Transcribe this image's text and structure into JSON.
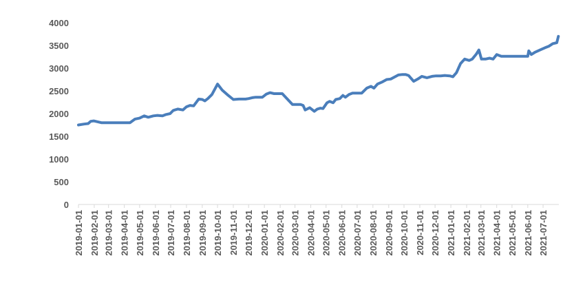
{
  "chart_data": {
    "type": "line",
    "title": "",
    "xlabel": "",
    "ylabel": "",
    "ylim": [
      0,
      4000
    ],
    "yticks": [
      0,
      500,
      1000,
      1500,
      2000,
      2500,
      3000,
      3500,
      4000
    ],
    "xticks": [
      "2019-01-01",
      "2019-02-01",
      "2019-03-01",
      "2019-04-01",
      "2019-05-01",
      "2019-06-01",
      "2019-07-01",
      "2019-08-01",
      "2019-09-01",
      "2019-10-01",
      "2019-11-01",
      "2019-12-01",
      "2020-01-01",
      "2020-02-01",
      "2020-03-01",
      "2020-04-01",
      "2020-05-01",
      "2020-06-01",
      "2020-07-01",
      "2020-08-01",
      "2020-09-01",
      "2020-10-01",
      "2020-11-01",
      "2020-12-01",
      "2021-01-01",
      "2021-02-01",
      "2021-03-01",
      "2021-04-01",
      "2021-05-01",
      "2021-06-01",
      "2021-07-01"
    ],
    "xlim": [
      "2019-01-01",
      "2021-08-01"
    ],
    "grid": false,
    "legend": "none",
    "colors": {
      "series": "#4a7ebb",
      "axis": "#d9d9d9",
      "text": "#595959"
    },
    "series": [
      {
        "x": [
          "2019-01-01",
          "2019-01-12",
          "2019-01-20",
          "2019-01-25",
          "2019-01-31",
          "2019-02-15",
          "2019-03-01",
          "2019-03-20",
          "2019-04-01",
          "2019-04-12",
          "2019-04-22",
          "2019-05-01",
          "2019-05-10",
          "2019-05-18",
          "2019-05-28",
          "2019-06-05",
          "2019-06-15",
          "2019-06-22",
          "2019-06-30",
          "2019-07-06",
          "2019-07-15",
          "2019-07-25",
          "2019-08-01",
          "2019-08-08",
          "2019-08-15",
          "2019-08-25",
          "2019-09-01",
          "2019-09-06",
          "2019-09-12",
          "2019-09-20",
          "2019-10-01",
          "2019-10-10",
          "2019-10-20",
          "2019-11-01",
          "2019-11-12",
          "2019-11-25",
          "2019-12-01",
          "2019-12-08",
          "2019-12-15",
          "2019-12-22",
          "2019-12-28",
          "2020-01-05",
          "2020-01-12",
          "2020-01-20",
          "2020-01-31",
          "2020-02-05",
          "2020-02-25",
          "2020-03-05",
          "2020-03-12",
          "2020-03-17",
          "2020-03-21",
          "2020-03-30",
          "2020-04-08",
          "2020-04-14",
          "2020-04-20",
          "2020-04-25",
          "2020-05-03",
          "2020-05-08",
          "2020-05-15",
          "2020-05-20",
          "2020-05-28",
          "2020-06-03",
          "2020-06-08",
          "2020-06-15",
          "2020-06-22",
          "2020-07-01",
          "2020-07-10",
          "2020-07-20",
          "2020-07-28",
          "2020-08-03",
          "2020-08-10",
          "2020-08-20",
          "2020-08-28",
          "2020-09-05",
          "2020-09-15",
          "2020-09-20",
          "2020-09-28",
          "2020-10-04",
          "2020-10-10",
          "2020-10-20",
          "2020-10-28",
          "2020-11-05",
          "2020-11-15",
          "2020-11-25",
          "2020-12-03",
          "2020-12-12",
          "2020-12-20",
          "2020-12-30",
          "2021-01-05",
          "2021-01-12",
          "2021-01-20",
          "2021-01-28",
          "2021-02-06",
          "2021-02-12",
          "2021-02-20",
          "2021-02-25",
          "2021-03-02",
          "2021-03-10",
          "2021-03-18",
          "2021-03-25",
          "2021-04-01",
          "2021-04-10",
          "2021-04-20",
          "2021-05-01",
          "2021-05-15",
          "2021-05-25",
          "2021-06-01",
          "2021-06-03",
          "2021-06-08",
          "2021-06-15",
          "2021-06-25",
          "2021-07-05",
          "2021-07-12",
          "2021-07-20",
          "2021-07-28",
          "2021-07-31"
        ],
        "values": [
          1750,
          1770,
          1780,
          1830,
          1840,
          1800,
          1800,
          1800,
          1800,
          1800,
          1880,
          1900,
          1950,
          1920,
          1950,
          1960,
          1950,
          1980,
          2000,
          2070,
          2100,
          2080,
          2150,
          2180,
          2170,
          2320,
          2310,
          2280,
          2330,
          2420,
          2650,
          2520,
          2420,
          2310,
          2320,
          2320,
          2330,
          2350,
          2360,
          2360,
          2360,
          2430,
          2460,
          2440,
          2440,
          2440,
          2200,
          2200,
          2200,
          2180,
          2080,
          2130,
          2050,
          2100,
          2120,
          2110,
          2240,
          2270,
          2240,
          2310,
          2330,
          2400,
          2360,
          2420,
          2450,
          2450,
          2450,
          2560,
          2600,
          2560,
          2650,
          2700,
          2750,
          2760,
          2820,
          2850,
          2860,
          2860,
          2840,
          2710,
          2760,
          2820,
          2790,
          2820,
          2830,
          2830,
          2840,
          2830,
          2810,
          2900,
          3100,
          3200,
          3170,
          3200,
          3310,
          3400,
          3200,
          3200,
          3220,
          3200,
          3300,
          3260,
          3260,
          3260,
          3260,
          3260,
          3260,
          3380,
          3300,
          3350,
          3400,
          3450,
          3480,
          3540,
          3560,
          3700
        ]
      }
    ]
  }
}
